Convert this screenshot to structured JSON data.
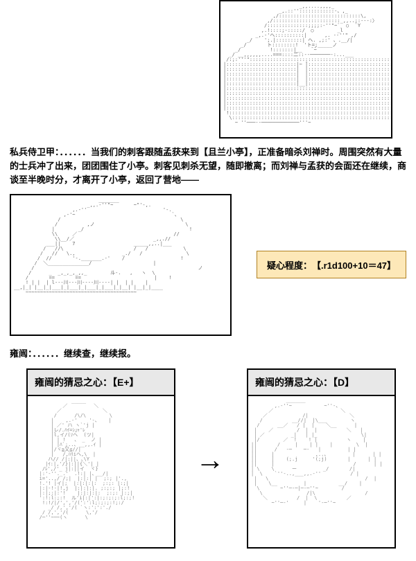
{
  "figure1": {
    "border_color": "#000000",
    "background": "#ffffff",
    "ascii": "                          _,,....,,,,_\n                   _,.::''::::::::::::-、,_\n                 ,/::::::::::::::::::::::::::::\\,\n               ,/:::::::::::::::::::::::_,,..;:---:〉\n              /::::::::::::::;;;;:-''\"~`  ○  `Y\n             ,.!::::;-:::::/  ○        _l\n           _,.-'ヘ::::::::::|      ,. -‐''\" ,/\n        _/    ';.|:::::::::| ヘ. ,;:' 、.__/|\n      _/       ト::::::::!  'ト=;_____ノ\n    _/          !:::::::|__   ̄ ̄~\n  _/ __,,,,,,....===::::二::--───────-:...___\n /:;:'''\":::::::::::::::::::::::::::::::::::::::::::::::::::::::::::::::::::::\\\n|::::::::::::::::::::::::|~ ̄|::::::::::::::::::::::::::::::::::::::::::::::::|\n|::::::::::::::::::::::::|  |:::::::::::::::::::::::::::::::::::::::::::::::::|\n|::::::::::::::::::::::::|  |::::::::::::::::::::::::::::::::::::::::::::::::::|\n|::::::::::::::::::::::::|  |:::::::::::::::::::::::::::::::::::::::::::::::::::|\n|::::::::::::::::::::::::|__|::::::::::::::::::::::::::::::::::::::::::::::::::::|\n|:::::::::::::::::::::::::::::::::::::::::::::::::::::::::::::::::::::::::::::::::::|\n|:::::::::::::::::::::::::::::::::::::::::::::::::::::::::::::::::::::::::::::::::::|\n|:::::::::::::::::::::::::::::::::::::::::::::::::::::::::::::::::::::::::::::::::::|\n|:::::::::::::::::::::::::::::::::::::::::::::::::::::::::::::::::::::::::::::::::::|\n|:::::::::::::::::::::::::::::::::::::::::::::::::::::::::::::::::::::::::::::::::::|\n !::::::::::::::::::::::::::::::::::::::::::::::::::::::::::::::::::::::::::::::/\n  \\:::::::::::::::::::::::::::::::::::::::::::::::::::::::::::::::::::::::::/\n    ~ ''───--─────────────'''~"
  },
  "narration1": {
    "speaker": "私兵侍卫甲：",
    "dots": "．．．．．．",
    "text": "当我们的刺客跟随孟获来到【且兰小亭】，正准备暗杀刘禅时。周围突然有大量的士兵冲了出来，团团围住了小亭。刺客见刺杀无望，随即撤离；而刘禅与孟获的会面还在继续，商谈至半晚时分，才离开了小亭，返回了营地——"
  },
  "figure2": {
    "border_color": "#000000",
    "ascii": "                             _______\n                         _,,.-''\"~       ~\"'-,.\n                    ,.-''                          '-.\n                 ,-'~                                 `、\n               /                                         \\\n              /          ,ノ                               \\\n             |        _/                                    !\n             \\\\     ／                                 //\n              \\\\__/／                           _,,.//\n           ___||    7                    _____,,..|___\n          /   //\\                        /   /            \\\n         /   //   \\.,                _./   /               \\\n        /  //       '-._______.-'    /                   !\n       /  ＼______________/                     |\n      /                                                        ノ\n     /      _  _,_,_,_,,_        斗-.   ,   ヽ  \\\n    /       ==       ==                         |    !\n    ! | |  | l---川---川----川----| |  | |    |\n__,|_| |__|_|___|_|___|_|___|_|___|_|__| |__|_|____\n    ~~~~~~~~~~~~~~~~~~~~~~~~~~~~~~~~~~~~~~"
  },
  "dice_roll": {
    "label": "疑心程度：",
    "formula": "【.r1d100+10＝47】",
    "background": "#fde8b8",
    "border_color": "#b08020"
  },
  "narration2": {
    "speaker": "雍闿：",
    "dots": "．．．．．．",
    "text": "继续查，继续报。"
  },
  "card_left": {
    "title_prefix": "雍闿的猜忌之心：",
    "rank": "【E+】",
    "header_bg": "#e8e8e8",
    "ascii": "              _____\n           ／         ＼\n         ／              ＼\n        /      /\\/\\        \\\n       |    ,.-'    '-、   |\n       | ／' ハ ヽ`'j |\n       |レ/.ﾊｲ=ｼ｣ｬ'ﾚ\n       |l,イ/(ｿヘ  (ツ|\n       | | !   、 _  ノ |\n       | |ﾊ`;..、__,,.ｲ |\n       |/ヾ≧又≦//|\n       |   /,ﾊﾘiヘ,\\  |\n      ハ// /|:||、､\\Y\n     |ｲ:|,'/}|:||{＼'| |\n    /ﾚ',/'_ j|:||イ  ヾ}\n   |:'-''._.'  .!:| |、__/|\n   i='..,/ /;|  |:|:| |  ;:; |'.,\n   !.'! |イ|;  |:|:|:|:  ;:;: |:;|\n   |:|-!-|!,j  |:|:|:|. ;:;:; |;:!\n   |:|;:|:'!    |:|:|:|:  ;:;: |:;|\n   ':!:l:;:!  ル'i|:|':|:;:;:;:l;:;!\n    !:!/|/',','/(':':l;:;:;:!;:/\n      _/ /,','/( `ヽ:':':'./\n    / /,','/(      \\,'/\n   /─''~─~(ヽ      \\"
  },
  "arrow": "→",
  "card_right": {
    "title_prefix": "雍闿的猜忌之心：",
    "rank": "【D】",
    "header_bg": "#e8e8e8",
    "ascii": "            ＿＿＿＿\n        ,.-''~           ~''-、\n      ／                       ＼\n    ／            /|              ＼\n   /          __//|  |\\___        ヽ\n  /      __／   / |  |    ＼__      |\n |    ／        /  |  |          ＼   |\n | ／         _|   | |_               \\|\n |/        ／  !    ! |          ヽ    |\n||       /     |    | |    |        \\  |\n||      /   -─    ─-   |         | |\n||     |              ,..、        |      | |\n||     |    (;.j     '(;j)       |      | |\n||     |                           /      | |\n| \\    \\      ー         _/       /|\n|  \\    `''-..,___,,.-''          / |\n |   \\                                 /  |\n |    \\__         |           __/    |\n  \\       ~''─-─|─-─''~        /\n   \\               /|\\                 /\n    ＼          /  |  \\          ／\n       ~''─-'     |    '-─''~"
  }
}
